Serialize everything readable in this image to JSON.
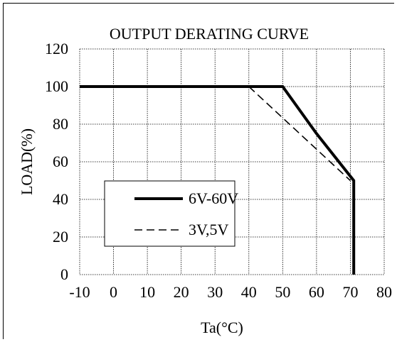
{
  "chart_data": {
    "type": "line",
    "title": "OUTPUT DERATING CURVE",
    "xlabel": "Ta(°C)",
    "ylabel": "LOAD(%)",
    "xlim": [
      -10,
      80
    ],
    "ylim": [
      0,
      120
    ],
    "x_ticks": [
      -10,
      0,
      10,
      20,
      30,
      40,
      50,
      60,
      70,
      80
    ],
    "y_ticks": [
      0,
      20,
      40,
      60,
      80,
      100,
      120
    ],
    "grid": true,
    "legend_position": "bottom-left",
    "series": [
      {
        "name": "6V-60V",
        "style": "solid",
        "color": "#000000",
        "points": [
          [
            -10,
            100
          ],
          [
            50,
            100
          ],
          [
            60,
            75
          ],
          [
            71,
            50
          ],
          [
            71,
            0
          ]
        ]
      },
      {
        "name": "3V,5V",
        "style": "dashed",
        "color": "#000000",
        "points": [
          [
            40,
            100
          ],
          [
            70,
            50
          ]
        ]
      }
    ]
  }
}
